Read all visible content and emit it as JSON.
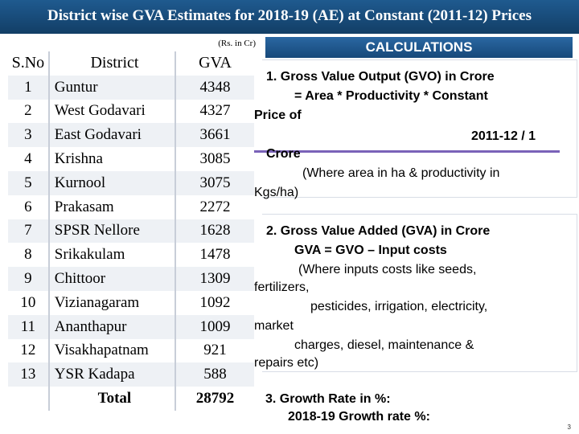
{
  "title": "District wise GVA Estimates for 2018-19 (AE) at Constant (2011-12) Prices",
  "units": "(Rs. in Cr)",
  "table": {
    "headers": {
      "sno": "S.No",
      "district": "District",
      "gva": "GVA"
    },
    "rows": [
      {
        "sno": "1",
        "district": "Guntur",
        "gva": "4348"
      },
      {
        "sno": "2",
        "district": "West Godavari",
        "gva": "4327"
      },
      {
        "sno": "3",
        "district": "East Godavari",
        "gva": "3661"
      },
      {
        "sno": "4",
        "district": "Krishna",
        "gva": "3085"
      },
      {
        "sno": "5",
        "district": "Kurnool",
        "gva": "3075"
      },
      {
        "sno": "6",
        "district": "Prakasam",
        "gva": "2272"
      },
      {
        "sno": "7",
        "district": "SPSR Nellore",
        "gva": "1628"
      },
      {
        "sno": "8",
        "district": "Srikakulam",
        "gva": "1478"
      },
      {
        "sno": "9",
        "district": "Chittoor",
        "gva": "1309"
      },
      {
        "sno": "10",
        "district": "Vizianagaram",
        "gva": "1092"
      },
      {
        "sno": "11",
        "district": "Ananthapur",
        "gva": "1009"
      },
      {
        "sno": "12",
        "district": "Visakhapatnam",
        "gva": "921"
      },
      {
        "sno": "13",
        "district": "YSR Kadapa",
        "gva": "588"
      }
    ],
    "total": {
      "label": "Total",
      "gva": "28792"
    }
  },
  "calculations": {
    "header": "CALCULATIONS",
    "gvo": {
      "line1": "1. Gross Value Output (GVO) in Crore",
      "line2": "= Area * Productivity * Constant",
      "line3": "Price of",
      "line4": "2011-12 / 1",
      "line5": "Crore",
      "line6": "(Where area in ha & productivity in",
      "line7": "Kgs/ha)"
    },
    "gva": {
      "line1": "2. Gross Value Added (GVA) in Crore",
      "line2": "GVA = GVO – Input costs",
      "line3": "(Where inputs costs like seeds,",
      "line4": "fertilizers,",
      "line5": "pesticides, irrigation, electricity,",
      "line6": "market",
      "line7": "charges, diesel, maintenance &",
      "line8": "repairs etc)"
    },
    "growth": {
      "line1": "3. Growth Rate in %:",
      "line2": "2018-19 Growth  rate %:"
    }
  },
  "page_number": "3",
  "colors": {
    "title_bg": "#1a4f80",
    "rule": "#7a62b8"
  }
}
